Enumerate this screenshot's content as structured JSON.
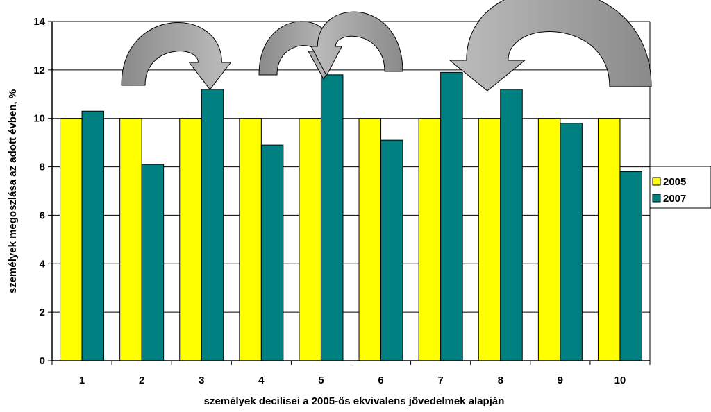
{
  "chart_data": {
    "type": "bar",
    "categories": [
      "1",
      "2",
      "3",
      "4",
      "5",
      "6",
      "7",
      "8",
      "9",
      "10"
    ],
    "series": [
      {
        "name": "2005",
        "color": "#ffff00",
        "values": [
          10,
          10,
          10,
          10,
          10,
          10,
          10,
          10,
          10,
          10
        ]
      },
      {
        "name": "2007",
        "color": "#008080",
        "values": [
          10.3,
          8.1,
          11.2,
          8.9,
          11.8,
          9.1,
          11.9,
          11.2,
          9.8,
          7.8
        ]
      }
    ],
    "xlabel": "személyek decilisei a 2005-ös ekvivalens jövedelmek alapján",
    "ylabel": "személyek megoszlása az adott évben, %",
    "ylim": [
      0,
      14
    ],
    "yticks": [
      0,
      2,
      4,
      6,
      8,
      10,
      12,
      14
    ],
    "grid": true,
    "legend_position": "right",
    "annotations": [
      {
        "type": "arrow",
        "from": "2",
        "to": "3",
        "color": "#a0a0a0"
      },
      {
        "type": "arrow",
        "from": "4",
        "to": "5",
        "color": "#a0a0a0"
      },
      {
        "type": "arrow",
        "from": "6",
        "to": "5",
        "color": "#a0a0a0"
      },
      {
        "type": "arrow",
        "from": "10",
        "to": "8",
        "color": "#a0a0a0"
      }
    ]
  }
}
